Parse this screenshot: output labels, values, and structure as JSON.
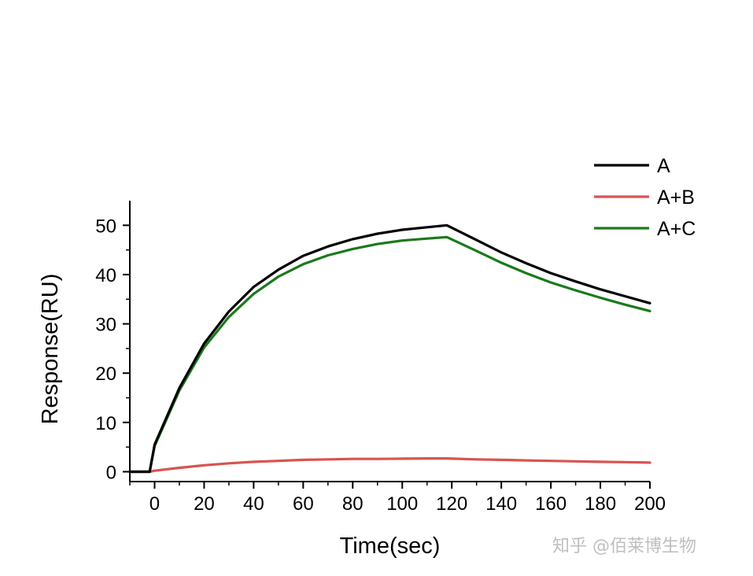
{
  "chart_data": {
    "type": "line",
    "title": "",
    "xlabel": "Time(sec)",
    "ylabel": "Response(RU)",
    "xlim": [
      -10,
      200
    ],
    "ylim": [
      -2,
      55
    ],
    "x_ticks": [
      0,
      20,
      40,
      60,
      80,
      100,
      120,
      140,
      160,
      180,
      200
    ],
    "x_tick_labels": [
      "0",
      "20",
      "40",
      "60",
      "80",
      "100",
      "120",
      "140",
      "160",
      "180",
      "200"
    ],
    "y_ticks": [
      0,
      10,
      20,
      30,
      40,
      50
    ],
    "y_tick_labels": [
      "0",
      "10",
      "20",
      "30",
      "40",
      "50"
    ],
    "grid": false,
    "legend_position": "top-right",
    "series": [
      {
        "name": "A",
        "color": "#000000",
        "x": [
          -10,
          -2,
          0,
          10,
          20,
          30,
          40,
          50,
          60,
          70,
          80,
          90,
          100,
          110,
          118,
          130,
          140,
          150,
          160,
          170,
          180,
          190,
          200
        ],
        "y": [
          0,
          0,
          5.5,
          17,
          26,
          32.5,
          37.5,
          41,
          43.8,
          45.7,
          47.2,
          48.3,
          49.1,
          49.6,
          50,
          47,
          44.5,
          42.3,
          40.3,
          38.6,
          37,
          35.6,
          34.2
        ]
      },
      {
        "name": "A+B",
        "color": "#d9534f",
        "x": [
          -10,
          -2,
          0,
          10,
          20,
          30,
          40,
          50,
          60,
          70,
          80,
          90,
          100,
          110,
          118,
          130,
          140,
          150,
          160,
          170,
          180,
          190,
          200
        ],
        "y": [
          0,
          0,
          0.2,
          0.8,
          1.3,
          1.7,
          2.0,
          2.2,
          2.4,
          2.5,
          2.6,
          2.6,
          2.65,
          2.7,
          2.7,
          2.5,
          2.4,
          2.3,
          2.2,
          2.1,
          2.0,
          1.95,
          1.85
        ]
      },
      {
        "name": "A+C",
        "color": "#1a7a1a",
        "x": [
          -10,
          -2,
          0,
          10,
          20,
          30,
          40,
          50,
          60,
          70,
          80,
          90,
          100,
          110,
          118,
          130,
          140,
          150,
          160,
          170,
          180,
          190,
          200
        ],
        "y": [
          0,
          0,
          5.2,
          16.5,
          25.2,
          31.4,
          36.1,
          39.6,
          42.1,
          43.9,
          45.2,
          46.2,
          46.9,
          47.3,
          47.6,
          44.8,
          42.4,
          40.3,
          38.4,
          36.8,
          35.3,
          33.9,
          32.6
        ]
      }
    ]
  },
  "watermark": "知乎 @佰莱博生物"
}
